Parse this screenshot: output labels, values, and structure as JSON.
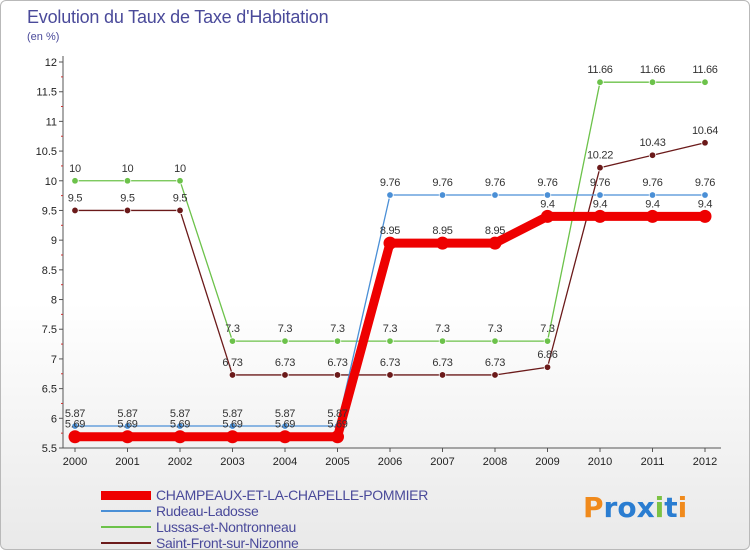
{
  "header": {
    "title": "Evolution du Taux de Taxe d'Habitation",
    "unit": "(en %)"
  },
  "logo": {
    "text": "Proxiti",
    "letters": [
      "P",
      "r",
      "o",
      "x",
      "i",
      "t",
      "i"
    ],
    "colors": [
      "#f08a1c",
      "#2a7dd1",
      "#2a7dd1",
      "#2a7dd1",
      "#7cc243",
      "#2a7dd1",
      "#f08a1c"
    ]
  },
  "chart_data": {
    "type": "line",
    "title": "Evolution du Taux de Taxe d'Habitation",
    "subtitle": "(en %)",
    "x": [
      "2000",
      "2001",
      "2002",
      "2003",
      "2004",
      "2005",
      "2006",
      "2007",
      "2008",
      "2009",
      "2010",
      "2011",
      "2012"
    ],
    "ylim": [
      5.5,
      12
    ],
    "yticks": [
      "5.5",
      "6",
      "6.5",
      "7",
      "7.5",
      "8",
      "8.5",
      "9",
      "9.5",
      "10",
      "10.5",
      "11",
      "11.5",
      "12"
    ],
    "grid": false,
    "legend_position": "bottom-left",
    "series": [
      {
        "name": "CHAMPEAUX-ET-LA-CHAPELLE-POMMIER",
        "color": "#ee0000",
        "values": [
          5.69,
          5.69,
          5.69,
          5.69,
          5.69,
          5.69,
          8.95,
          8.95,
          8.95,
          9.4,
          9.4,
          9.4,
          9.4
        ],
        "labels": [
          "5.69",
          "5.69",
          "5.69",
          "5.69",
          "5.69",
          "5.69",
          "8.95",
          "8.95",
          "8.95",
          "9.4",
          "9.4",
          "9.4",
          "9.4"
        ]
      },
      {
        "name": "Rudeau-Ladosse",
        "color": "#4a8fd6",
        "values": [
          5.87,
          5.87,
          5.87,
          5.87,
          5.87,
          5.87,
          9.76,
          9.76,
          9.76,
          9.76,
          9.76,
          9.76,
          9.76
        ],
        "labels": [
          "5.87",
          "5.87",
          "5.87",
          "5.87",
          "5.87",
          "5.87",
          "9.76",
          "9.76",
          "9.76",
          "9.76",
          "9.76",
          "9.76",
          "9.76"
        ]
      },
      {
        "name": "Lussas-et-Nontronneau",
        "color": "#6cc24a",
        "values": [
          10,
          10,
          10,
          7.3,
          7.3,
          7.3,
          7.3,
          7.3,
          7.3,
          7.3,
          11.66,
          11.66,
          11.66
        ],
        "labels": [
          "10",
          "10",
          "10",
          "7.3",
          "7.3",
          "7.3",
          "7.3",
          "7.3",
          "7.3",
          "7.3",
          "11.66",
          "11.66",
          "11.66"
        ]
      },
      {
        "name": "Saint-Front-sur-Nizonne",
        "color": "#6b1a1a",
        "values": [
          9.5,
          9.5,
          9.5,
          6.73,
          6.73,
          6.73,
          6.73,
          6.73,
          6.73,
          6.86,
          10.22,
          10.43,
          10.64
        ],
        "labels": [
          "9.5",
          "9.5",
          "9.5",
          "6.73",
          "6.73",
          "6.73",
          "6.73",
          "6.73",
          "6.73",
          "6.86",
          "10.22",
          "10.43",
          "10.64"
        ]
      }
    ]
  }
}
